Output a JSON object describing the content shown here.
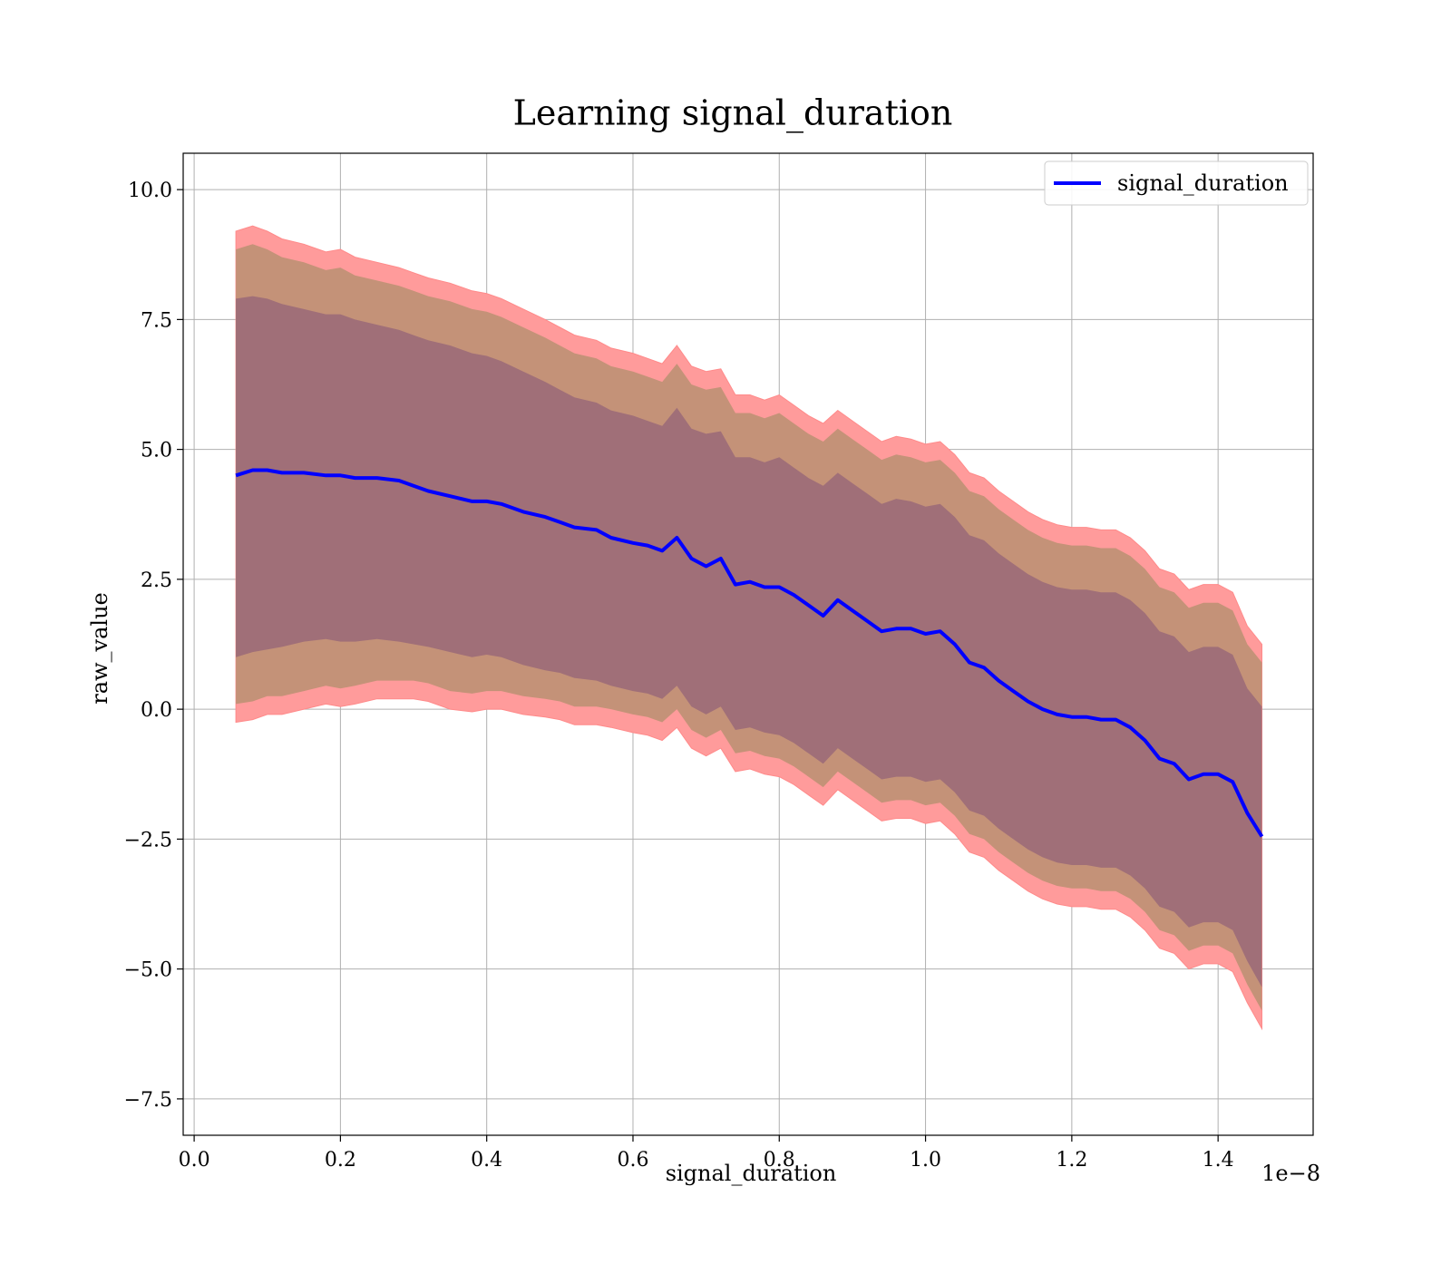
{
  "chart_data": {
    "type": "line",
    "title": "Learning signal_duration",
    "xlabel": "signal_duration",
    "ylabel": "raw_value",
    "x_offset_text": "1e−8",
    "xlim": [
      -0.015,
      1.53
    ],
    "ylim": [
      -8.2,
      10.7
    ],
    "x_ticks": [
      0.0,
      0.2,
      0.4,
      0.6,
      0.8,
      1.0,
      1.2,
      1.4
    ],
    "x_tick_labels": [
      "0.0",
      "0.2",
      "0.4",
      "0.6",
      "0.8",
      "1.0",
      "1.2",
      "1.4"
    ],
    "y_ticks": [
      -7.5,
      -5.0,
      -2.5,
      0.0,
      2.5,
      5.0,
      7.5,
      10.0
    ],
    "y_tick_labels": [
      "−7.5",
      "−5.0",
      "−2.5",
      "0.0",
      "2.5",
      "5.0",
      "7.5",
      "10.0"
    ],
    "grid": true,
    "legend_position": "top-right",
    "series": [
      {
        "name": "signal_duration",
        "color": "#0000ff",
        "x": [
          0.057,
          0.08,
          0.1,
          0.12,
          0.15,
          0.18,
          0.2,
          0.22,
          0.25,
          0.28,
          0.3,
          0.32,
          0.35,
          0.38,
          0.4,
          0.42,
          0.45,
          0.48,
          0.5,
          0.52,
          0.55,
          0.57,
          0.6,
          0.62,
          0.64,
          0.66,
          0.68,
          0.7,
          0.72,
          0.74,
          0.76,
          0.78,
          0.8,
          0.82,
          0.84,
          0.86,
          0.88,
          0.9,
          0.92,
          0.94,
          0.96,
          0.98,
          1.0,
          1.02,
          1.04,
          1.06,
          1.08,
          1.1,
          1.12,
          1.14,
          1.16,
          1.18,
          1.2,
          1.22,
          1.24,
          1.26,
          1.28,
          1.3,
          1.32,
          1.34,
          1.36,
          1.38,
          1.4,
          1.42,
          1.44,
          1.46
        ],
        "y": [
          4.5,
          4.6,
          4.6,
          4.55,
          4.55,
          4.5,
          4.5,
          4.45,
          4.45,
          4.4,
          4.3,
          4.2,
          4.1,
          4.0,
          4.0,
          3.95,
          3.8,
          3.7,
          3.6,
          3.5,
          3.45,
          3.3,
          3.2,
          3.15,
          3.05,
          3.3,
          2.9,
          2.75,
          2.9,
          2.4,
          2.45,
          2.35,
          2.35,
          2.2,
          2.0,
          1.8,
          2.1,
          1.9,
          1.7,
          1.5,
          1.55,
          1.55,
          1.45,
          1.5,
          1.25,
          0.9,
          0.8,
          0.55,
          0.35,
          0.15,
          0.0,
          -0.1,
          -0.15,
          -0.15,
          -0.2,
          -0.2,
          -0.35,
          -0.6,
          -0.95,
          -1.05,
          -1.35,
          -1.25,
          -1.25,
          -1.4,
          -2.0,
          -2.45
        ],
        "band_outer_upper": [
          9.2,
          9.3,
          9.2,
          9.05,
          8.95,
          8.8,
          8.85,
          8.7,
          8.6,
          8.5,
          8.4,
          8.3,
          8.2,
          8.05,
          8.0,
          7.9,
          7.7,
          7.5,
          7.35,
          7.2,
          7.1,
          6.95,
          6.85,
          6.75,
          6.65,
          7.0,
          6.6,
          6.5,
          6.55,
          6.05,
          6.05,
          5.95,
          6.05,
          5.85,
          5.65,
          5.5,
          5.75,
          5.55,
          5.35,
          5.15,
          5.25,
          5.2,
          5.1,
          5.15,
          4.9,
          4.55,
          4.45,
          4.2,
          4.0,
          3.8,
          3.65,
          3.55,
          3.5,
          3.5,
          3.45,
          3.45,
          3.3,
          3.05,
          2.7,
          2.6,
          2.3,
          2.4,
          2.4,
          2.25,
          1.6,
          1.25
        ],
        "band_outer_lower": [
          -0.25,
          -0.2,
          -0.1,
          -0.1,
          0.0,
          0.1,
          0.05,
          0.1,
          0.2,
          0.2,
          0.2,
          0.15,
          0.0,
          -0.05,
          0.0,
          0.0,
          -0.1,
          -0.15,
          -0.2,
          -0.3,
          -0.3,
          -0.35,
          -0.45,
          -0.5,
          -0.6,
          -0.35,
          -0.75,
          -0.9,
          -0.75,
          -1.2,
          -1.15,
          -1.25,
          -1.3,
          -1.45,
          -1.65,
          -1.85,
          -1.55,
          -1.75,
          -1.95,
          -2.15,
          -2.1,
          -2.1,
          -2.2,
          -2.15,
          -2.4,
          -2.75,
          -2.85,
          -3.1,
          -3.3,
          -3.5,
          -3.65,
          -3.75,
          -3.8,
          -3.8,
          -3.85,
          -3.85,
          -4.0,
          -4.25,
          -4.6,
          -4.7,
          -5.0,
          -4.9,
          -4.9,
          -5.05,
          -5.65,
          -6.15
        ],
        "band_inner_upper": [
          7.9,
          7.95,
          7.9,
          7.8,
          7.7,
          7.6,
          7.6,
          7.5,
          7.4,
          7.3,
          7.2,
          7.1,
          7.0,
          6.85,
          6.8,
          6.7,
          6.5,
          6.3,
          6.15,
          6.0,
          5.9,
          5.75,
          5.65,
          5.55,
          5.45,
          5.8,
          5.4,
          5.3,
          5.35,
          4.85,
          4.85,
          4.75,
          4.85,
          4.65,
          4.45,
          4.3,
          4.55,
          4.35,
          4.15,
          3.95,
          4.05,
          4.0,
          3.9,
          3.95,
          3.7,
          3.35,
          3.25,
          3.0,
          2.8,
          2.6,
          2.45,
          2.35,
          2.3,
          2.3,
          2.25,
          2.25,
          2.1,
          1.85,
          1.5,
          1.4,
          1.1,
          1.2,
          1.2,
          1.05,
          0.4,
          0.05
        ],
        "band_inner_lower": [
          1.0,
          1.1,
          1.15,
          1.2,
          1.3,
          1.35,
          1.3,
          1.3,
          1.35,
          1.3,
          1.25,
          1.2,
          1.1,
          1.0,
          1.05,
          1.0,
          0.85,
          0.75,
          0.7,
          0.6,
          0.55,
          0.45,
          0.35,
          0.3,
          0.2,
          0.45,
          0.05,
          -0.1,
          0.05,
          -0.4,
          -0.35,
          -0.45,
          -0.5,
          -0.65,
          -0.85,
          -1.05,
          -0.75,
          -0.95,
          -1.15,
          -1.35,
          -1.3,
          -1.3,
          -1.4,
          -1.35,
          -1.6,
          -1.95,
          -2.05,
          -2.3,
          -2.5,
          -2.7,
          -2.85,
          -2.95,
          -3.0,
          -3.0,
          -3.05,
          -3.05,
          -3.2,
          -3.45,
          -3.8,
          -3.9,
          -4.2,
          -4.1,
          -4.1,
          -4.25,
          -4.85,
          -5.35
        ],
        "band_outer_color": "#ff9b9b",
        "band_mid_color": "#c49278",
        "band_inner_color": "#a06f78"
      }
    ]
  }
}
